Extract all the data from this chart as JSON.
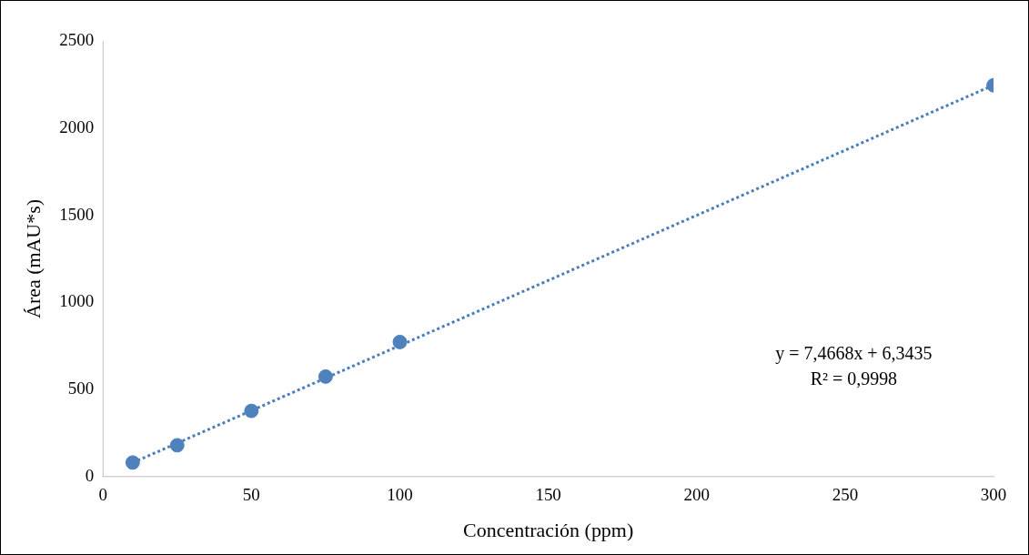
{
  "chart_data": {
    "type": "scatter",
    "xlabel": "Concentración (ppm)",
    "ylabel": "Área (mAU*s)",
    "xlim": [
      0,
      300
    ],
    "xticks": [
      0,
      50,
      100,
      150,
      200,
      250,
      300
    ],
    "ylim": [
      0,
      2500
    ],
    "yticks": [
      0,
      500,
      1000,
      1500,
      2000,
      2500
    ],
    "grid": false,
    "legend": false,
    "marker": "circle",
    "annotations": [
      "y = 7,4668x + 6,3435",
      "R² = 0,9998"
    ],
    "series": [
      {
        "type": "line",
        "x": [
          10,
          300
        ],
        "values": [
          81,
          2246
        ],
        "color": "#4a7ebb",
        "line_style": "dotted",
        "marker": "none"
      },
      {
        "x": [
          10,
          25,
          50,
          75,
          100,
          300
        ],
        "values": [
          82,
          181,
          378,
          575,
          773,
          2245
        ],
        "color": "#4f81bd"
      }
    ]
  }
}
